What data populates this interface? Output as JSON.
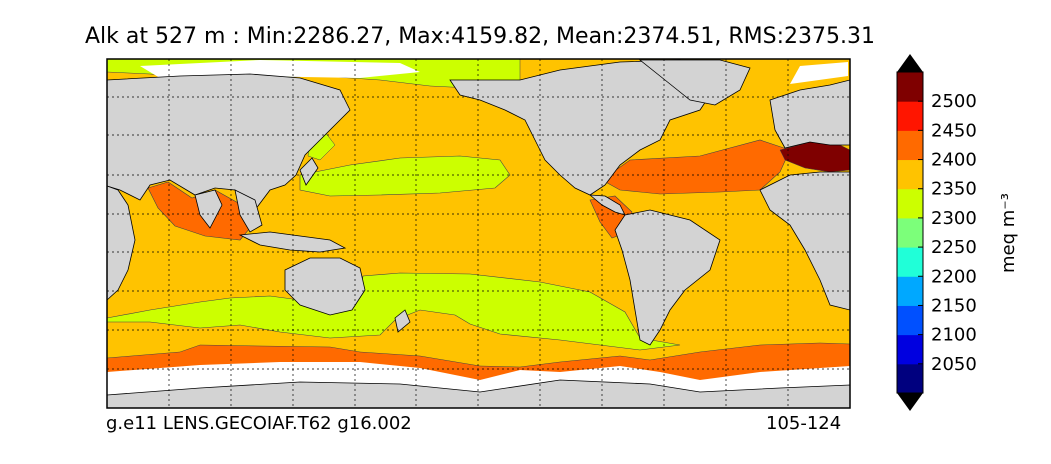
{
  "title": "Alk at 527 m : Min:2286.27, Max:4159.82, Mean:2374.51, RMS:2375.31",
  "footer": {
    "case": "g.e11 LENS.GECOIAF.T62 g16.002",
    "years": "105-124"
  },
  "colorbar": {
    "unit": "meq m⁻³",
    "labels": [
      "2050",
      "2100",
      "2150",
      "2200",
      "2250",
      "2300",
      "2350",
      "2400",
      "2450",
      "2500"
    ],
    "colors": [
      "#00007f",
      "#0000e0",
      "#0050ff",
      "#00a8ff",
      "#20ffd8",
      "#7cff7a",
      "#ccff00",
      "#ffc300",
      "#ff6a00",
      "#ff1500",
      "#7f0000"
    ],
    "extend": "both"
  },
  "map": {
    "projection": "cylindrical",
    "land_color": "#d3d3d3",
    "ice_color": "#ffffff",
    "gridlines": "dotted"
  }
}
